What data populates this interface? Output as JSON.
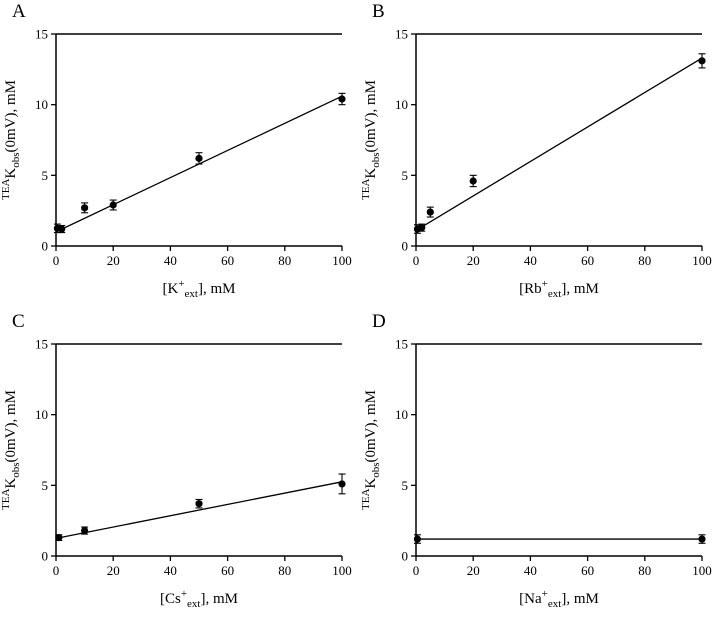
{
  "figure": {
    "description": "Four-panel scatter plot figure with linear fits and error bars",
    "background": "#ffffff",
    "line_color": "#000000",
    "marker": "filled-circle"
  },
  "chart_data": [
    {
      "panel": "A",
      "type": "scatter",
      "xlabel": "[K+ ext], mM",
      "ylabel": "TEA K obs (0mV), mM",
      "x_label_parts": [
        {
          "t": "[K",
          "s": "n"
        },
        {
          "t": "+",
          "s": "u"
        },
        {
          "t": "ext",
          "s": "d"
        },
        {
          "t": "], mM",
          "s": "n"
        }
      ],
      "y_label_parts": [
        {
          "t": "TEA",
          "s": "u"
        },
        {
          "t": "K",
          "s": "n"
        },
        {
          "t": "obs",
          "s": "d"
        },
        {
          "t": "(0mV), mM",
          "s": "n"
        }
      ],
      "xlim": [
        0,
        100
      ],
      "ylim": [
        0,
        15
      ],
      "x_ticks": [
        0,
        20,
        40,
        60,
        80,
        100
      ],
      "y_ticks": [
        0,
        5,
        10,
        15
      ],
      "grid": false,
      "legend": null,
      "points": [
        {
          "x": 0.5,
          "y": 1.25,
          "e": 0.3
        },
        {
          "x": 2,
          "y": 1.2,
          "e": 0.25
        },
        {
          "x": 10,
          "y": 2.7,
          "e": 0.35
        },
        {
          "x": 20,
          "y": 2.9,
          "e": 0.35
        },
        {
          "x": 50,
          "y": 6.2,
          "e": 0.4
        },
        {
          "x": 100,
          "y": 10.4,
          "e": 0.4
        }
      ],
      "fit": {
        "x0": 0,
        "y0": 1.0,
        "x1": 100,
        "y1": 10.6
      }
    },
    {
      "panel": "B",
      "type": "scatter",
      "xlabel": "[Rb+ ext], mM",
      "ylabel": "TEA K obs (0mV), mM",
      "x_label_parts": [
        {
          "t": "[Rb",
          "s": "n"
        },
        {
          "t": "+",
          "s": "u"
        },
        {
          "t": "ext",
          "s": "d"
        },
        {
          "t": "], mM",
          "s": "n"
        }
      ],
      "y_label_parts": [
        {
          "t": "TEA",
          "s": "u"
        },
        {
          "t": "K",
          "s": "n"
        },
        {
          "t": "obs",
          "s": "d"
        },
        {
          "t": "(0mV), mM",
          "s": "n"
        }
      ],
      "xlim": [
        0,
        100
      ],
      "ylim": [
        0,
        15
      ],
      "x_ticks": [
        0,
        20,
        40,
        60,
        80,
        100
      ],
      "y_ticks": [
        0,
        5,
        10,
        15
      ],
      "grid": false,
      "legend": null,
      "points": [
        {
          "x": 0.5,
          "y": 1.2,
          "e": 0.3
        },
        {
          "x": 2,
          "y": 1.3,
          "e": 0.25
        },
        {
          "x": 5,
          "y": 2.4,
          "e": 0.35
        },
        {
          "x": 20,
          "y": 4.6,
          "e": 0.4
        },
        {
          "x": 100,
          "y": 13.1,
          "e": 0.5
        }
      ],
      "fit": {
        "x0": 0,
        "y0": 1.1,
        "x1": 100,
        "y1": 13.3
      }
    },
    {
      "panel": "C",
      "type": "scatter",
      "xlabel": "[Cs+ ext], mM",
      "ylabel": "TEA K obs (0mV), mM",
      "x_label_parts": [
        {
          "t": "[Cs",
          "s": "n"
        },
        {
          "t": "+",
          "s": "u"
        },
        {
          "t": "ext",
          "s": "d"
        },
        {
          "t": "], mM",
          "s": "n"
        }
      ],
      "y_label_parts": [
        {
          "t": "TEA",
          "s": "u"
        },
        {
          "t": "K",
          "s": "n"
        },
        {
          "t": "obs",
          "s": "d"
        },
        {
          "t": "(0mV), mM",
          "s": "n"
        }
      ],
      "xlim": [
        0,
        100
      ],
      "ylim": [
        0,
        15
      ],
      "x_ticks": [
        0,
        20,
        40,
        60,
        80,
        100
      ],
      "y_ticks": [
        0,
        5,
        10,
        15
      ],
      "grid": false,
      "legend": null,
      "points": [
        {
          "x": 1,
          "y": 1.3,
          "e": 0.2
        },
        {
          "x": 10,
          "y": 1.8,
          "e": 0.25
        },
        {
          "x": 50,
          "y": 3.7,
          "e": 0.3
        },
        {
          "x": 100,
          "y": 5.1,
          "e": 0.7
        }
      ],
      "fit": {
        "x0": 0,
        "y0": 1.25,
        "x1": 100,
        "y1": 5.25
      }
    },
    {
      "panel": "D",
      "type": "scatter",
      "xlabel": "[Na+ ext], mM",
      "ylabel": "TEA K obs (0mV), mM",
      "x_label_parts": [
        {
          "t": "[Na",
          "s": "n"
        },
        {
          "t": "+",
          "s": "u"
        },
        {
          "t": "ext",
          "s": "d"
        },
        {
          "t": "], mM",
          "s": "n"
        }
      ],
      "y_label_parts": [
        {
          "t": "TEA",
          "s": "u"
        },
        {
          "t": "K",
          "s": "n"
        },
        {
          "t": "obs",
          "s": "d"
        },
        {
          "t": "(0mV), mM",
          "s": "n"
        }
      ],
      "xlim": [
        0,
        100
      ],
      "ylim": [
        0,
        15
      ],
      "x_ticks": [
        0,
        20,
        40,
        60,
        80,
        100
      ],
      "y_ticks": [
        0,
        5,
        10,
        15
      ],
      "grid": false,
      "legend": null,
      "points": [
        {
          "x": 0.5,
          "y": 1.2,
          "e": 0.3
        },
        {
          "x": 100,
          "y": 1.2,
          "e": 0.3
        }
      ],
      "fit": {
        "x0": 0,
        "y0": 1.2,
        "x1": 100,
        "y1": 1.2
      }
    }
  ]
}
